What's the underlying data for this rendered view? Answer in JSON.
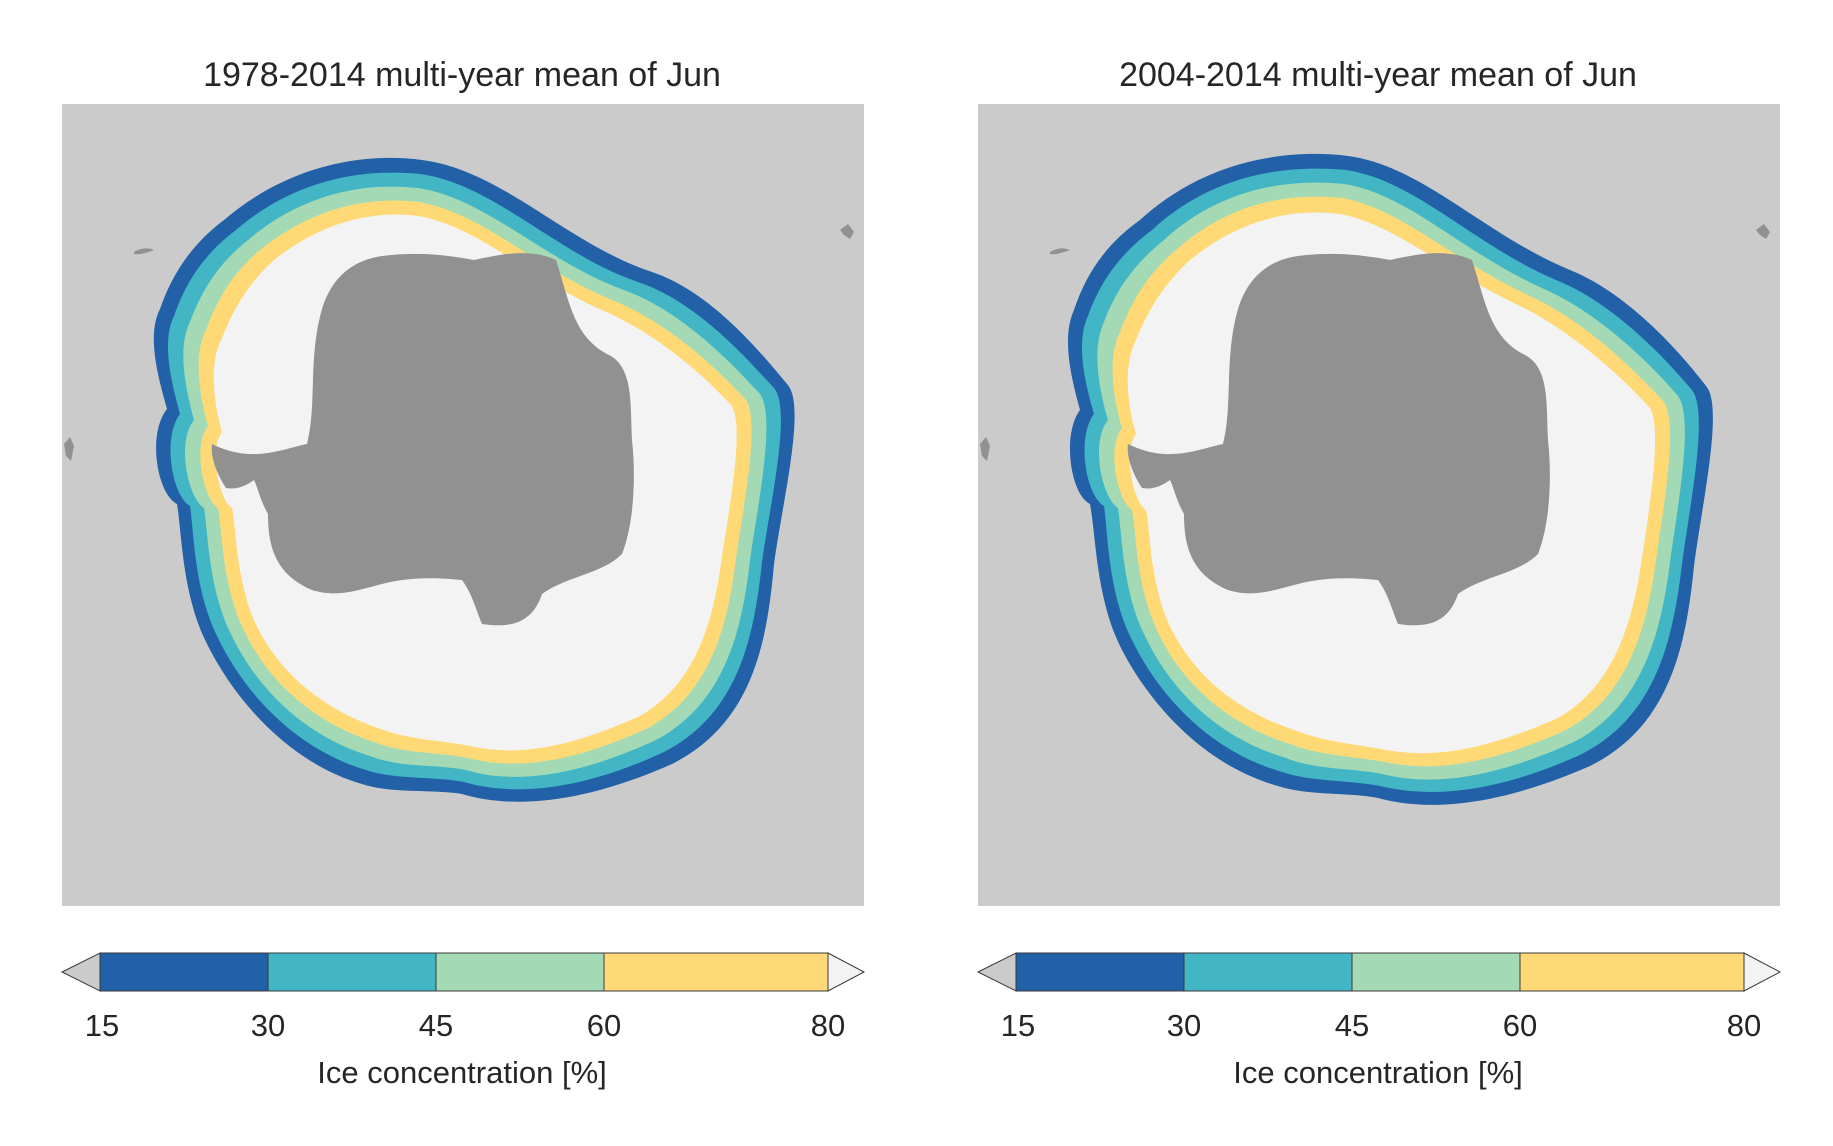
{
  "figure": {
    "colors": {
      "land": "#919191",
      "ocean": "#cbcbcb",
      "pack_ice": "#f3f3f3",
      "outline": "#3a3a3a"
    },
    "panels": [
      {
        "title": "1978-2014 multi-year mean of Jun"
      },
      {
        "title": "2004-2014 multi-year mean of Jun"
      }
    ],
    "colorbar": {
      "label": "Ice concentration [%]",
      "ticks": [
        "15",
        "30",
        "45",
        "60",
        "80"
      ],
      "bins": [
        {
          "range": "15-30",
          "color": "#2260a8"
        },
        {
          "range": "30-45",
          "color": "#42b6c4"
        },
        {
          "range": "45-60",
          "color": "#a3dab5"
        },
        {
          "range": "60-80",
          "color": "#fed976"
        }
      ],
      "under_color": "#cbcbcb",
      "over_color": "#f3f3f3",
      "extend": "both"
    }
  }
}
